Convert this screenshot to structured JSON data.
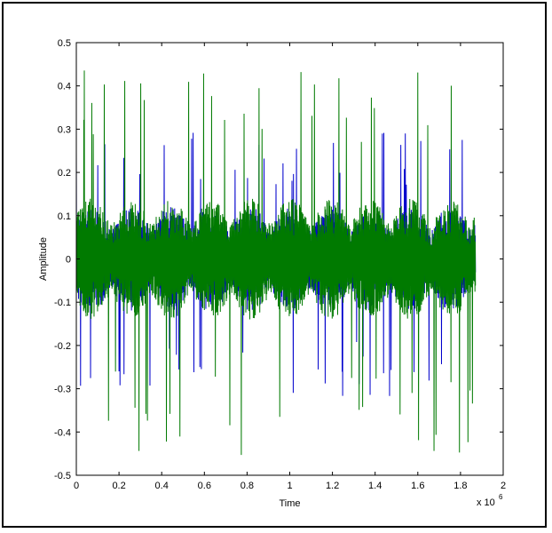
{
  "chart_data": {
    "type": "line",
    "title": "",
    "xlabel": "Time",
    "ylabel": "Amplitude",
    "x_multiplier_label": "x 10",
    "x_multiplier_exponent": "6",
    "xlim": [
      0,
      2
    ],
    "ylim": [
      -0.5,
      0.5
    ],
    "x_ticks": [
      "0",
      "0.2",
      "0.4",
      "0.6",
      "0.8",
      "1",
      "1.2",
      "1.4",
      "1.6",
      "1.8",
      "2"
    ],
    "y_ticks": [
      "0.5",
      "0.4",
      "0.3",
      "0.2",
      "0.1",
      "0",
      "-0.1",
      "-0.2",
      "-0.3",
      "-0.4",
      "-0.5"
    ],
    "x_end": 1.87,
    "grid": false,
    "series": [
      {
        "color": "#0000cc",
        "peak_max": 0.31,
        "peak_min": -0.4,
        "base_amp": 0.12
      },
      {
        "color": "#007a00",
        "peak_max": 0.44,
        "peak_min": -0.46,
        "base_amp": 0.14
      }
    ]
  }
}
